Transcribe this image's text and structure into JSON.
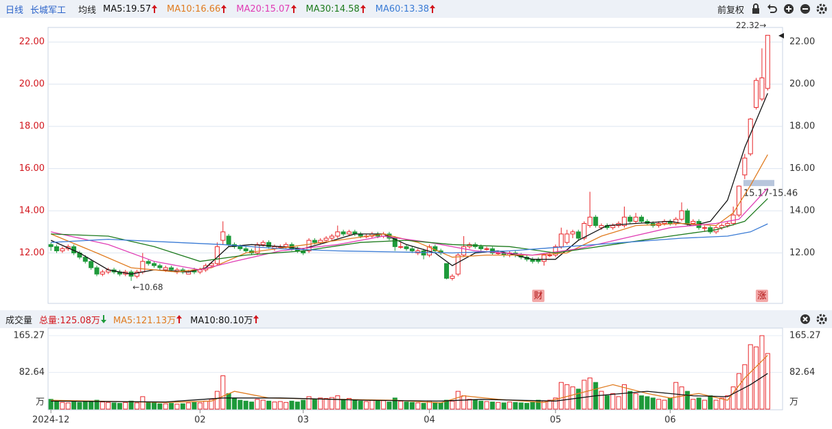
{
  "header": {
    "period": "日线",
    "name": "长城军工",
    "ma_label": "均线",
    "adjust": "前复权"
  },
  "chart_data": [
    {
      "type": "candlestick",
      "up_color": "#e8262a",
      "down_color": "#1e9a3a",
      "grid": true,
      "xlim": [
        -0.5,
        127.6
      ],
      "ylim": [
        9.61,
        22.69
      ],
      "yticks": [
        {
          "value": 12,
          "label": "12.00"
        },
        {
          "value": 14,
          "label": "14.00"
        },
        {
          "value": 16,
          "label": "16.00"
        },
        {
          "value": 18,
          "label": "18.00"
        },
        {
          "value": 20,
          "label": "20.00"
        },
        {
          "value": 22,
          "label": "22.00"
        }
      ],
      "open": [
        12.4,
        12.3,
        12.1,
        12.2,
        12.3,
        12.0,
        11.8,
        11.6,
        11.3,
        11.0,
        11.1,
        11.2,
        11.1,
        11.0,
        11.1,
        10.9,
        11.1,
        11.6,
        11.5,
        11.4,
        11.2,
        11.3,
        11.1,
        11.2,
        11.0,
        11.2,
        11.1,
        11.2,
        11.4,
        11.5,
        12.6,
        12.8,
        12.4,
        12.3,
        12.2,
        12.1,
        12.0,
        12.4,
        12.5,
        12.2,
        12.3,
        12.3,
        12.4,
        12.2,
        12.1,
        12.1,
        12.6,
        12.5,
        12.6,
        12.7,
        12.8,
        13.0,
        12.9,
        13.0,
        12.9,
        12.8,
        12.8,
        12.9,
        12.8,
        12.9,
        12.7,
        12.3,
        12.3,
        12.2,
        12.0,
        12.1,
        11.9,
        12.3,
        12.1,
        11.5,
        10.8,
        11.0,
        11.9,
        12.3,
        12.4,
        12.3,
        12.2,
        12.2,
        12.0,
        12.0,
        11.9,
        12.0,
        11.9,
        11.8,
        11.7,
        11.7,
        11.6,
        11.9,
        11.9,
        12.3,
        12.5,
        12.9,
        13.0,
        12.7,
        13.3,
        13.7,
        13.2,
        13.3,
        13.2,
        13.3,
        13.3,
        13.7,
        13.5,
        13.7,
        13.5,
        13.4,
        13.3,
        13.4,
        13.5,
        13.4,
        13.6,
        14.0,
        13.4,
        13.5,
        13.2,
        13.2,
        13.0,
        13.2,
        13.3,
        13.4,
        13.8,
        15.7,
        16.7,
        18.9,
        19.3,
        19.8
      ],
      "high": [
        12.5,
        12.4,
        12.3,
        12.4,
        12.4,
        12.1,
        11.9,
        11.7,
        11.4,
        11.2,
        11.3,
        11.3,
        11.2,
        11.2,
        11.2,
        11.2,
        12.0,
        11.7,
        11.6,
        11.5,
        11.4,
        11.4,
        11.3,
        11.3,
        11.2,
        11.3,
        11.3,
        11.5,
        11.6,
        12.5,
        13.5,
        12.9,
        12.5,
        12.4,
        12.3,
        12.2,
        12.5,
        12.6,
        12.6,
        12.4,
        12.4,
        12.5,
        12.5,
        12.3,
        12.2,
        12.7,
        12.7,
        12.7,
        12.8,
        12.9,
        13.3,
        13.1,
        13.1,
        13.1,
        13.0,
        12.9,
        13.0,
        13.0,
        13.0,
        13.0,
        12.8,
        12.5,
        12.4,
        12.3,
        12.2,
        12.2,
        12.4,
        12.4,
        12.2,
        11.5,
        11.0,
        12.0,
        12.8,
        12.5,
        12.5,
        12.4,
        12.3,
        12.3,
        12.1,
        12.1,
        12.1,
        12.1,
        12.0,
        11.9,
        11.8,
        11.8,
        12.0,
        12.0,
        12.4,
        13.2,
        13.1,
        13.1,
        13.1,
        13.5,
        14.9,
        13.8,
        13.4,
        13.4,
        13.4,
        13.5,
        14.2,
        13.8,
        13.9,
        13.8,
        13.6,
        13.5,
        13.5,
        13.6,
        13.6,
        13.7,
        14.4,
        14.1,
        13.6,
        13.6,
        13.3,
        13.3,
        13.3,
        13.4,
        13.5,
        14.2,
        15.2,
        16.7,
        18.4,
        20.3,
        21.7,
        22.32
      ],
      "low": [
        12.1,
        12.0,
        12.0,
        12.1,
        11.9,
        11.7,
        11.5,
        11.2,
        10.9,
        10.9,
        11.0,
        11.0,
        10.9,
        10.9,
        10.68,
        10.8,
        11.0,
        11.4,
        11.3,
        11.2,
        11.1,
        11.1,
        11.0,
        11.0,
        11.0,
        11.0,
        11.0,
        11.1,
        11.3,
        11.4,
        12.4,
        12.3,
        12.2,
        12.1,
        12.0,
        11.9,
        11.9,
        12.3,
        12.2,
        12.1,
        12.2,
        12.2,
        12.1,
        12.0,
        11.9,
        12.0,
        12.4,
        12.4,
        12.5,
        12.6,
        12.7,
        12.8,
        12.8,
        12.8,
        12.7,
        12.7,
        12.7,
        12.7,
        12.7,
        12.6,
        12.1,
        12.2,
        12.1,
        12.0,
        11.9,
        11.7,
        11.8,
        12.0,
        11.9,
        10.75,
        10.7,
        10.9,
        11.8,
        12.2,
        12.2,
        12.1,
        12.1,
        11.9,
        11.9,
        11.8,
        11.8,
        11.8,
        11.7,
        11.6,
        11.5,
        11.5,
        11.4,
        11.8,
        11.8,
        12.2,
        12.4,
        12.7,
        12.6,
        12.6,
        13.2,
        13.2,
        13.1,
        13.1,
        13.1,
        13.2,
        13.2,
        13.4,
        13.4,
        13.4,
        13.3,
        13.2,
        13.2,
        13.3,
        13.3,
        13.3,
        13.5,
        13.3,
        13.3,
        13.1,
        13.0,
        12.9,
        12.9,
        13.1,
        13.2,
        13.3,
        13.7,
        15.5,
        16.6,
        18.8,
        19.2,
        19.7
      ],
      "close": [
        12.3,
        12.1,
        12.2,
        12.3,
        12.0,
        11.8,
        11.6,
        11.3,
        11.0,
        11.1,
        11.2,
        11.1,
        11.0,
        11.1,
        10.9,
        11.1,
        11.6,
        11.5,
        11.4,
        11.3,
        11.3,
        11.2,
        11.2,
        11.1,
        11.1,
        11.1,
        11.2,
        11.4,
        11.5,
        12.3,
        13.0,
        12.4,
        12.3,
        12.2,
        12.1,
        12.0,
        12.4,
        12.5,
        12.3,
        12.3,
        12.3,
        12.4,
        12.2,
        12.1,
        12.0,
        12.6,
        12.5,
        12.6,
        12.7,
        12.8,
        13.0,
        12.9,
        13.0,
        12.9,
        12.8,
        12.8,
        12.9,
        12.8,
        12.9,
        12.7,
        12.3,
        12.3,
        12.2,
        12.1,
        12.1,
        11.9,
        12.3,
        12.1,
        12.0,
        10.8,
        10.9,
        11.9,
        12.3,
        12.4,
        12.3,
        12.2,
        12.2,
        12.0,
        12.0,
        11.9,
        12.0,
        11.9,
        11.8,
        11.7,
        11.6,
        11.6,
        11.9,
        11.9,
        12.3,
        12.9,
        12.9,
        13.0,
        12.7,
        13.4,
        13.7,
        13.3,
        13.3,
        13.2,
        13.3,
        13.4,
        13.7,
        13.5,
        13.7,
        13.5,
        13.4,
        13.3,
        13.4,
        13.5,
        13.4,
        13.6,
        14.0,
        13.4,
        13.5,
        13.2,
        13.2,
        13.0,
        13.2,
        13.3,
        13.4,
        13.8,
        15.17,
        16.5,
        18.35,
        20.18,
        20.3,
        22.32
      ],
      "series": [
        {
          "name": "MA5:19.57",
          "color": "#111111",
          "x": [
            0,
            5,
            10,
            14,
            18,
            24,
            27,
            31,
            35,
            40,
            44,
            48,
            53,
            58,
            62,
            67,
            70,
            74,
            78,
            84,
            88,
            92,
            97,
            102,
            108,
            112,
            115,
            118,
            121,
            125
          ],
          "values": [
            12.6,
            12.0,
            11.2,
            11.0,
            11.2,
            11.1,
            11.3,
            12.3,
            12.4,
            12.3,
            12.2,
            12.5,
            12.9,
            12.9,
            12.4,
            12.0,
            11.4,
            12.0,
            12.1,
            11.7,
            11.7,
            12.6,
            13.3,
            13.4,
            13.5,
            13.3,
            13.5,
            14.5,
            17.0,
            19.57
          ]
        },
        {
          "name": "MA10:16.66",
          "color": "#e07b1f",
          "x": [
            0,
            8,
            14,
            22,
            28,
            34,
            42,
            50,
            58,
            64,
            70,
            76,
            84,
            90,
            96,
            102,
            110,
            116,
            119,
            122,
            125
          ],
          "values": [
            12.9,
            12.0,
            11.3,
            11.1,
            11.3,
            12.0,
            12.3,
            12.6,
            12.9,
            12.5,
            11.8,
            11.9,
            11.9,
            12.0,
            12.8,
            13.3,
            13.4,
            13.3,
            13.9,
            15.2,
            16.66
          ]
        },
        {
          "name": "MA20:15.07",
          "color": "#e03cb4",
          "x": [
            0,
            10,
            18,
            26,
            32,
            40,
            50,
            58,
            66,
            74,
            84,
            92,
            100,
            108,
            116,
            120,
            125
          ],
          "values": [
            13.0,
            12.4,
            11.6,
            11.2,
            11.6,
            12.1,
            12.4,
            12.8,
            12.5,
            12.1,
            11.9,
            12.2,
            12.7,
            13.2,
            13.4,
            13.6,
            15.07
          ]
        },
        {
          "name": "MA30:14.58",
          "color": "#1c7a1c",
          "x": [
            0,
            10,
            18,
            26,
            34,
            44,
            54,
            62,
            70,
            80,
            88,
            98,
            108,
            116,
            121,
            125
          ],
          "values": [
            12.9,
            12.8,
            12.3,
            11.6,
            11.9,
            12.1,
            12.5,
            12.6,
            12.4,
            12.3,
            12.0,
            12.4,
            12.8,
            13.1,
            13.5,
            14.58
          ]
        },
        {
          "name": "MA60:13.38",
          "color": "#3a7bd5",
          "x": [
            0,
            10,
            30,
            40,
            50,
            60,
            70,
            80,
            90,
            100,
            110,
            118,
            122,
            125
          ],
          "values": [
            12.5,
            12.65,
            12.4,
            12.2,
            12.1,
            12.05,
            12.0,
            12.1,
            12.3,
            12.5,
            12.7,
            12.8,
            13.0,
            13.38
          ]
        }
      ],
      "annotations": [
        {
          "text": "22.32→",
          "x": 125,
          "y": 22.32
        },
        {
          "text": "←10.68",
          "x": 14,
          "y": 10.68
        }
      ],
      "band": {
        "label": "15.17-15.46",
        "low": 15.17,
        "high": 15.46
      },
      "events": [
        {
          "label": "财",
          "x": 85
        },
        {
          "label": "涨",
          "x": 124
        }
      ]
    },
    {
      "type": "bar",
      "title": "成交量",
      "total": "总量:125.08万",
      "y_unit": "万",
      "xlim": [
        -0.5,
        127.6
      ],
      "ylim": [
        0,
        165.27
      ],
      "yticks": [
        82.64,
        165.27
      ],
      "xticks": [
        {
          "value": 0,
          "label": "2024-12"
        },
        {
          "value": 26,
          "label": "02"
        },
        {
          "value": 44,
          "label": "03"
        },
        {
          "value": 66,
          "label": "04"
        },
        {
          "value": 88,
          "label": "05"
        },
        {
          "value": 108,
          "label": "06"
        }
      ],
      "values": [
        22,
        18,
        15,
        14,
        16,
        15,
        17,
        18,
        20,
        16,
        15,
        14,
        13,
        15,
        18,
        14,
        28,
        16,
        14,
        12,
        12,
        13,
        11,
        12,
        14,
        15,
        14,
        18,
        22,
        40,
        75,
        35,
        25,
        20,
        18,
        16,
        22,
        20,
        18,
        16,
        17,
        15,
        18,
        16,
        20,
        28,
        22,
        25,
        24,
        26,
        30,
        22,
        24,
        20,
        18,
        17,
        20,
        18,
        19,
        16,
        25,
        18,
        16,
        15,
        14,
        13,
        18,
        15,
        14,
        20,
        18,
        40,
        30,
        22,
        20,
        18,
        17,
        16,
        15,
        14,
        16,
        15,
        14,
        13,
        15,
        20,
        18,
        20,
        25,
        60,
        55,
        50,
        45,
        65,
        70,
        60,
        40,
        30,
        35,
        28,
        55,
        40,
        35,
        30,
        28,
        25,
        22,
        20,
        25,
        60,
        50,
        40,
        22,
        25,
        20,
        30,
        20,
        25,
        30,
        50,
        80,
        100,
        145,
        140,
        165.27,
        125.08
      ],
      "series": [
        {
          "name": "MA5:121.13万",
          "color": "#e07b1f",
          "x": [
            0,
            20,
            28,
            32,
            38,
            50,
            60,
            68,
            72,
            78,
            86,
            92,
            98,
            104,
            108,
            113,
            118,
            121,
            125
          ],
          "values": [
            20,
            15,
            18,
            40,
            25,
            22,
            20,
            14,
            30,
            22,
            15,
            35,
            55,
            35,
            25,
            35,
            20,
            70,
            121.13
          ]
        },
        {
          "name": "MA10:80.10万",
          "color": "#111111",
          "x": [
            0,
            20,
            30,
            40,
            55,
            68,
            75,
            88,
            95,
            104,
            112,
            118,
            122,
            125
          ],
          "values": [
            18,
            16,
            25,
            25,
            20,
            18,
            22,
            18,
            30,
            40,
            30,
            28,
            55,
            80.1
          ]
        }
      ]
    }
  ]
}
